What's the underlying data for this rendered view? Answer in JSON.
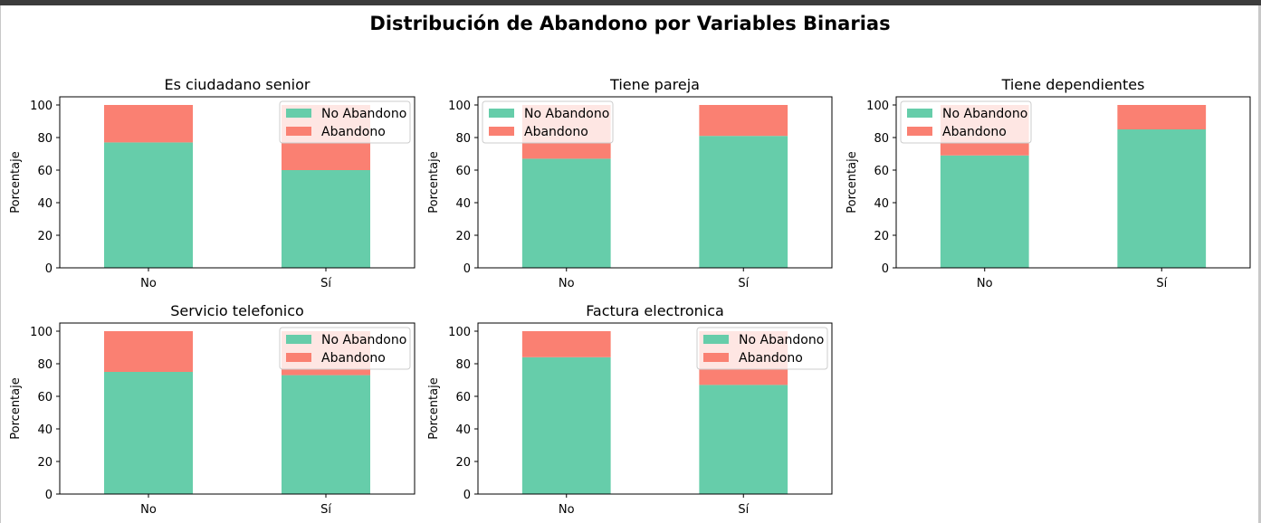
{
  "figure": {
    "title": "Distribución de Abandono por Variables Binarias"
  },
  "colors": {
    "no_abandono": "#66cdaa",
    "abandono": "#fa8072"
  },
  "chart_data": [
    {
      "type": "bar",
      "stacked": true,
      "title": "Es ciudadano senior",
      "categories": [
        "No",
        "Sí"
      ],
      "series": [
        {
          "name": "No Abandono",
          "values": [
            77,
            60
          ]
        },
        {
          "name": "Abandono",
          "values": [
            23,
            40
          ]
        }
      ],
      "ylabel": "Porcentaje",
      "ylim": [
        0,
        105
      ],
      "yticks": [
        0,
        20,
        40,
        60,
        80,
        100
      ],
      "legend": "upper right"
    },
    {
      "type": "bar",
      "stacked": true,
      "title": "Tiene pareja",
      "categories": [
        "No",
        "Sí"
      ],
      "series": [
        {
          "name": "No Abandono",
          "values": [
            67,
            81
          ]
        },
        {
          "name": "Abandono",
          "values": [
            33,
            19
          ]
        }
      ],
      "ylabel": "Porcentaje",
      "ylim": [
        0,
        105
      ],
      "yticks": [
        0,
        20,
        40,
        60,
        80,
        100
      ],
      "legend": "upper left"
    },
    {
      "type": "bar",
      "stacked": true,
      "title": "Tiene dependientes",
      "categories": [
        "No",
        "Sí"
      ],
      "series": [
        {
          "name": "No Abandono",
          "values": [
            69,
            85
          ]
        },
        {
          "name": "Abandono",
          "values": [
            31,
            15
          ]
        }
      ],
      "ylabel": "Porcentaje",
      "ylim": [
        0,
        105
      ],
      "yticks": [
        0,
        20,
        40,
        60,
        80,
        100
      ],
      "legend": "upper left"
    },
    {
      "type": "bar",
      "stacked": true,
      "title": "Servicio telefonico",
      "categories": [
        "No",
        "Sí"
      ],
      "series": [
        {
          "name": "No Abandono",
          "values": [
            75,
            73
          ]
        },
        {
          "name": "Abandono",
          "values": [
            25,
            27
          ]
        }
      ],
      "ylabel": "Porcentaje",
      "ylim": [
        0,
        105
      ],
      "yticks": [
        0,
        20,
        40,
        60,
        80,
        100
      ],
      "legend": "upper right"
    },
    {
      "type": "bar",
      "stacked": true,
      "title": "Factura electronica",
      "categories": [
        "No",
        "Sí"
      ],
      "series": [
        {
          "name": "No Abandono",
          "values": [
            84,
            67
          ]
        },
        {
          "name": "Abandono",
          "values": [
            16,
            33
          ]
        }
      ],
      "ylabel": "Porcentaje",
      "ylim": [
        0,
        105
      ],
      "yticks": [
        0,
        20,
        40,
        60,
        80,
        100
      ],
      "legend": "upper right"
    }
  ]
}
